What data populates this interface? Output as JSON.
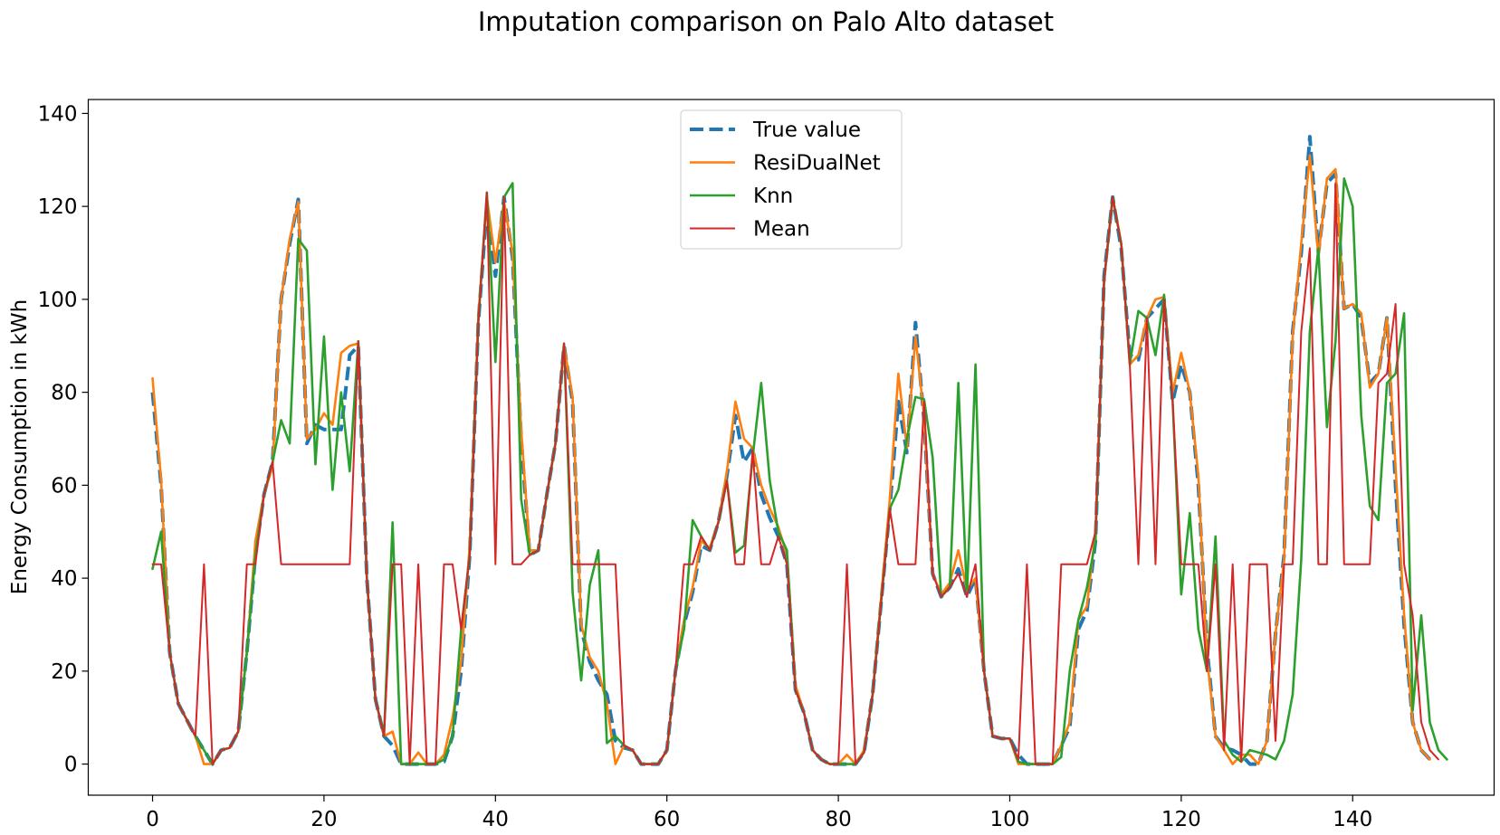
{
  "chart_data": {
    "type": "line",
    "title": "Imputation comparison on Palo Alto dataset",
    "xlabel": "",
    "ylabel": "Energy Consumption in kWh",
    "xlim": [
      -7.5,
      156.5
    ],
    "ylim": [
      -6.7,
      143
    ],
    "xticks": [
      0,
      20,
      40,
      60,
      80,
      100,
      120,
      140
    ],
    "yticks": [
      0,
      20,
      40,
      60,
      80,
      100,
      120,
      140
    ],
    "legend_position": "upper center",
    "series": [
      {
        "name": "True value",
        "color": "#1f77b4",
        "style": "dashed",
        "values": [
          80,
          60,
          24,
          13,
          9.5,
          6,
          3,
          0,
          3,
          3.5,
          7,
          24,
          45,
          58,
          65,
          100,
          112,
          121.5,
          69,
          73,
          72,
          72,
          72,
          88,
          90,
          40,
          14,
          6,
          4,
          0,
          0,
          0,
          0,
          0,
          0.5,
          6,
          20,
          45,
          95,
          120,
          105,
          122,
          109,
          70,
          45,
          46,
          58,
          69,
          90,
          78,
          29,
          22,
          18,
          15,
          5,
          3.5,
          3,
          0,
          0,
          0,
          3,
          20,
          30,
          37,
          47,
          46,
          52,
          62,
          75,
          65,
          68,
          58,
          53,
          49,
          43,
          16,
          11,
          3,
          1,
          0,
          0,
          0,
          0,
          2.5,
          15,
          35,
          55,
          78,
          67,
          95,
          74,
          41,
          36,
          38,
          42,
          36,
          40,
          20,
          6,
          5.5,
          5.5,
          2,
          0,
          0,
          0,
          0,
          4,
          8,
          29,
          33,
          48,
          105,
          122,
          111,
          88,
          87,
          96,
          98,
          100,
          78,
          86,
          80,
          60,
          25,
          6,
          3.5,
          3,
          2,
          0,
          0,
          5,
          28,
          45,
          93,
          110,
          135,
          110,
          125,
          127,
          98,
          99,
          96,
          82,
          84,
          96,
          60,
          30,
          9,
          3,
          1
        ]
      },
      {
        "name": "ResiDualNet",
        "color": "#ff7f0e",
        "style": "solid",
        "values": [
          83,
          61,
          24,
          13,
          9.5,
          6,
          0,
          0,
          3,
          3.5,
          7,
          24,
          48,
          58,
          64,
          100,
          113,
          121,
          70,
          72,
          75.5,
          73,
          88.5,
          90,
          90.5,
          40,
          14,
          6,
          7,
          0,
          0,
          2.5,
          0,
          0,
          2,
          10,
          22,
          47,
          96,
          122,
          108,
          121,
          110,
          72,
          46,
          46,
          58,
          69,
          90,
          79,
          30,
          23,
          20,
          13,
          0,
          4,
          3,
          0,
          0,
          0,
          3,
          20,
          31,
          38,
          48,
          46.5,
          52,
          63,
          78,
          70,
          68,
          60,
          55,
          51,
          45,
          17,
          11,
          3,
          1,
          0,
          0,
          2,
          0,
          3,
          15,
          36,
          57,
          84,
          68,
          92,
          75,
          41,
          36.5,
          39,
          46,
          37.5,
          40,
          20,
          6,
          5.5,
          5.5,
          0,
          0,
          0,
          0,
          0,
          4,
          9,
          31,
          34,
          50,
          104,
          122,
          112,
          86,
          88,
          96,
          100,
          100.5,
          80,
          88.5,
          80,
          62,
          23,
          6,
          3,
          0,
          2,
          2,
          0,
          5,
          28,
          44,
          92,
          112,
          131,
          109,
          126,
          128,
          98,
          99,
          97,
          81,
          84,
          96,
          64,
          32,
          9,
          3,
          1
        ]
      },
      {
        "name": "Knn",
        "color": "#2ca02c",
        "style": "solid",
        "values": [
          42,
          50,
          24,
          13,
          9.5,
          6,
          3,
          0,
          3,
          3.5,
          7,
          24,
          45,
          58,
          65,
          74,
          69,
          113,
          110.5,
          64.5,
          92,
          59,
          80,
          63,
          91,
          40,
          14,
          6,
          52,
          0,
          0,
          0,
          0,
          0,
          1,
          6,
          29,
          45,
          95,
          123,
          86.5,
          122,
          125,
          57,
          45,
          46,
          58,
          69,
          90.5,
          37,
          18,
          38.5,
          46,
          4.5,
          6,
          4,
          3,
          0,
          0,
          0,
          3,
          20,
          29,
          52.5,
          49,
          46,
          52,
          61,
          45.5,
          47,
          66,
          82,
          61,
          50,
          46,
          16,
          11,
          3,
          1,
          0,
          0,
          0,
          0,
          2.5,
          15,
          35,
          55,
          59,
          70,
          79,
          78.5,
          66,
          36,
          38,
          82,
          36,
          86,
          20,
          6,
          5.5,
          5.5,
          0.5,
          0,
          0,
          0,
          0,
          1.5,
          20,
          31,
          38,
          48,
          104,
          122,
          112,
          86,
          97.5,
          96,
          88,
          101,
          78,
          36.5,
          54,
          29,
          20,
          49,
          5,
          2,
          0.5,
          3,
          2.5,
          2,
          1,
          5,
          15,
          44,
          93,
          111,
          72.5,
          91,
          126,
          120,
          75,
          55.5,
          52.5,
          82,
          84,
          97,
          11.5,
          32,
          9,
          3,
          1
        ]
      },
      {
        "name": "Mean",
        "color": "#d62728",
        "style": "solid",
        "values": [
          43,
          43,
          24,
          13,
          9.5,
          6,
          43,
          0,
          3,
          3.5,
          7,
          43,
          43,
          58,
          65,
          43,
          43,
          43,
          43,
          43,
          43,
          43,
          43,
          43,
          91,
          40,
          14,
          6,
          43,
          43,
          0,
          43,
          0,
          0,
          43,
          43,
          29,
          45,
          95,
          123,
          43,
          122,
          43,
          43,
          45,
          46,
          58,
          69,
          90.5,
          43,
          43,
          43,
          43,
          43,
          43,
          4,
          3,
          0,
          0,
          0,
          3,
          20,
          43,
          43,
          49,
          46,
          52,
          61,
          43,
          43,
          67.5,
          43,
          43,
          49,
          43,
          16,
          11,
          3,
          1,
          0,
          0,
          43,
          0,
          2.5,
          15,
          35,
          55,
          43,
          43,
          43,
          78,
          41,
          36,
          38,
          41,
          36,
          43,
          20,
          6,
          5.5,
          5.5,
          1,
          43,
          0,
          0,
          0,
          43,
          43,
          43,
          43,
          50,
          104,
          122,
          112,
          86,
          43,
          96,
          43,
          100,
          78,
          43,
          43,
          43,
          20,
          43,
          3,
          43,
          0.5,
          43,
          43,
          43,
          5,
          43,
          43,
          93,
          111,
          43,
          43,
          125,
          43,
          43,
          43,
          43,
          82,
          84,
          99,
          43,
          32,
          9,
          3,
          1
        ]
      }
    ]
  }
}
